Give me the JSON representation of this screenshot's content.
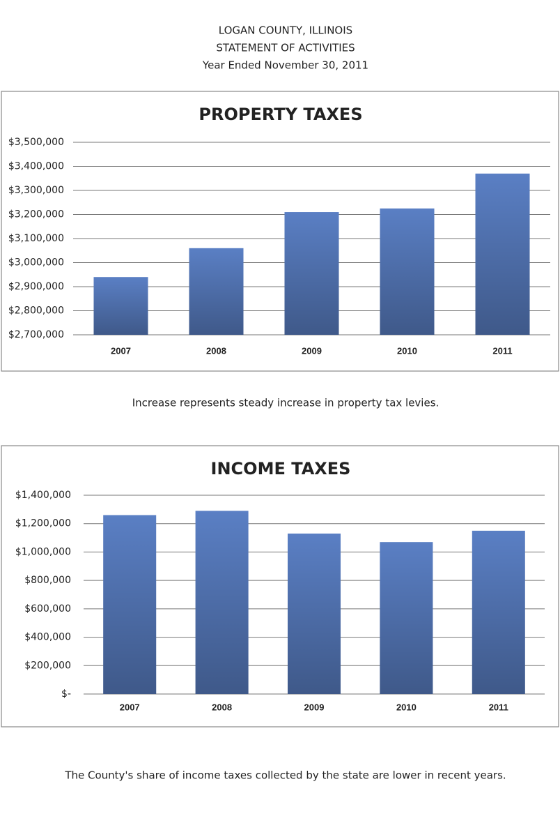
{
  "header": {
    "lines": [
      "LOGAN COUNTY, ILLINOIS",
      "STATEMENT OF ACTIVITIES",
      "Year Ended November 30, 2011"
    ]
  },
  "chart_data": [
    {
      "type": "bar",
      "title": "PROPERTY TAXES",
      "categories": [
        "2007",
        "2008",
        "2009",
        "2010",
        "2011"
      ],
      "values": [
        2940000,
        3060000,
        3210000,
        3225000,
        3370000
      ],
      "color": "#5a7fc4",
      "grid": true,
      "ylim": [
        2700000,
        3500000
      ],
      "yticks": [
        {
          "value": 2700000,
          "label": "$2,700,000"
        },
        {
          "value": 2800000,
          "label": "$2,800,000"
        },
        {
          "value": 2900000,
          "label": "$2,900,000"
        },
        {
          "value": 3000000,
          "label": "$3,000,000"
        },
        {
          "value": 3100000,
          "label": "$3,100,000"
        },
        {
          "value": 3200000,
          "label": "$3,200,000"
        },
        {
          "value": 3300000,
          "label": "$3,300,000"
        },
        {
          "value": 3400000,
          "label": "$3,400,000"
        },
        {
          "value": 3500000,
          "label": "$3,500,000"
        }
      ],
      "caption": "Increase represents steady increase in property tax levies."
    },
    {
      "type": "bar",
      "title": "INCOME TAXES",
      "categories": [
        "2007",
        "2008",
        "2009",
        "2010",
        "2011"
      ],
      "values": [
        1260000,
        1290000,
        1130000,
        1070000,
        1150000
      ],
      "color": "#5a7fc4",
      "grid": true,
      "ylim": [
        0,
        1400000
      ],
      "yticks": [
        {
          "value": 0,
          "label": "$-"
        },
        {
          "value": 200000,
          "label": "$200,000"
        },
        {
          "value": 400000,
          "label": "$400,000"
        },
        {
          "value": 600000,
          "label": "$600,000"
        },
        {
          "value": 800000,
          "label": "$800,000"
        },
        {
          "value": 1000000,
          "label": "$1,000,000"
        },
        {
          "value": 1200000,
          "label": "$1,200,000"
        },
        {
          "value": 1400000,
          "label": "$1,400,000"
        }
      ],
      "caption": "The County's share of income taxes collected by the state are lower in recent years."
    }
  ]
}
